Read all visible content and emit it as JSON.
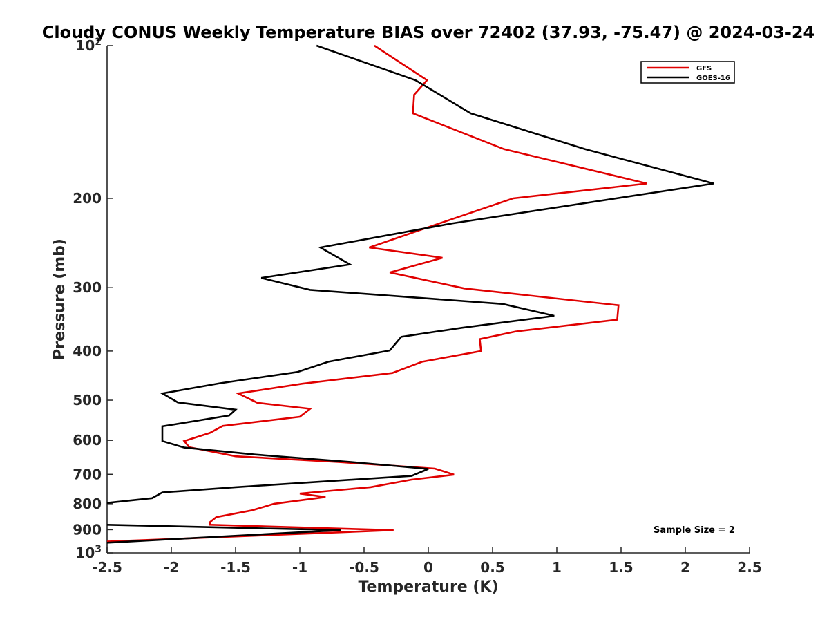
{
  "chart_data": {
    "type": "line",
    "title": "Cloudy CONUS Weekly Temperature BIAS over 72402 (37.93, -75.47) @ 2024-03-24",
    "xlabel": "Temperature (K)",
    "ylabel": "Pressure (mb)",
    "xlim": [
      -2.5,
      2.5
    ],
    "ylim": [
      100,
      1000
    ],
    "y_scale": "log",
    "y_reversed": true,
    "x_ticks": [
      "-2.5",
      "-2",
      "-1.5",
      "-1",
      "-0.5",
      "0",
      "0.5",
      "1",
      "1.5",
      "2",
      "2.5"
    ],
    "y_ticks": [
      {
        "value": 100,
        "base": "10",
        "exp": "2"
      },
      {
        "value": 200,
        "label": "200"
      },
      {
        "value": 300,
        "label": "300"
      },
      {
        "value": 400,
        "label": "400"
      },
      {
        "value": 500,
        "label": "500"
      },
      {
        "value": 600,
        "label": "600"
      },
      {
        "value": 700,
        "label": "700"
      },
      {
        "value": 800,
        "label": "800"
      },
      {
        "value": 900,
        "label": "900"
      },
      {
        "value": 1000,
        "base": "10",
        "exp": "3"
      }
    ],
    "grid": false,
    "legend_position": "top-right",
    "annotation": "Sample Size = 2",
    "series": [
      {
        "name": "GFS",
        "color": "#e00000",
        "points": [
          [
            -0.42,
            100
          ],
          [
            -0.01,
            117
          ],
          [
            -0.11,
            125
          ],
          [
            -0.12,
            136
          ],
          [
            0.59,
            160
          ],
          [
            1.7,
            187
          ],
          [
            0.66,
            200
          ],
          [
            0.18,
            220
          ],
          [
            -0.46,
            250
          ],
          [
            0.11,
            262
          ],
          [
            -0.3,
            280
          ],
          [
            0.28,
            301
          ],
          [
            1.48,
            325
          ],
          [
            1.47,
            347
          ],
          [
            0.68,
            366
          ],
          [
            0.4,
            379
          ],
          [
            0.41,
            400
          ],
          [
            -0.05,
            420
          ],
          [
            -0.28,
            442
          ],
          [
            -0.98,
            464
          ],
          [
            -1.48,
            485
          ],
          [
            -1.33,
            506
          ],
          [
            -0.92,
            520
          ],
          [
            -1.0,
            539
          ],
          [
            -1.6,
            562
          ],
          [
            -1.7,
            580
          ],
          [
            -1.9,
            602
          ],
          [
            -1.86,
            619
          ],
          [
            -1.5,
            645
          ],
          [
            -0.7,
            662
          ],
          [
            0.05,
            682
          ],
          [
            0.2,
            701
          ],
          [
            -0.13,
            717
          ],
          [
            -0.45,
            742
          ],
          [
            -1.0,
            764
          ],
          [
            -0.8,
            776
          ],
          [
            -1.2,
            800
          ],
          [
            -1.37,
            824
          ],
          [
            -1.65,
            850
          ],
          [
            -1.7,
            870
          ],
          [
            -1.7,
            880
          ],
          [
            -0.27,
            902
          ],
          [
            -2.5,
            950
          ]
        ]
      },
      {
        "name": "GOES-16",
        "color": "#000000",
        "points": [
          [
            -0.87,
            100
          ],
          [
            -0.1,
            117
          ],
          [
            0.33,
            136
          ],
          [
            1.22,
            160
          ],
          [
            2.22,
            187
          ],
          [
            0.19,
            224
          ],
          [
            -0.84,
            250
          ],
          [
            -0.61,
            270
          ],
          [
            -1.3,
            287
          ],
          [
            -0.92,
            303
          ],
          [
            0.58,
            323
          ],
          [
            0.98,
            341
          ],
          [
            0.26,
            360
          ],
          [
            -0.21,
            375
          ],
          [
            -0.3,
            399
          ],
          [
            -0.78,
            420
          ],
          [
            -1.02,
            440
          ],
          [
            -1.62,
            463
          ],
          [
            -2.07,
            485
          ],
          [
            -1.95,
            505
          ],
          [
            -1.5,
            522
          ],
          [
            -1.55,
            536
          ],
          [
            -2.07,
            563
          ],
          [
            -2.07,
            602
          ],
          [
            -1.9,
            620
          ],
          [
            -1.35,
            640
          ],
          [
            -0.6,
            662
          ],
          [
            0.0,
            683
          ],
          [
            -0.13,
            705
          ],
          [
            -0.7,
            720
          ],
          [
            -1.5,
            742
          ],
          [
            -2.07,
            760
          ],
          [
            -2.15,
            780
          ],
          [
            -2.5,
            797
          ]
        ]
      },
      {
        "name": "GOES-16",
        "color": "#000000",
        "points": [
          [
            -2.5,
            880
          ],
          [
            -0.68,
            902
          ],
          [
            -1.15,
            915
          ],
          [
            -2.5,
            955
          ]
        ]
      }
    ]
  }
}
